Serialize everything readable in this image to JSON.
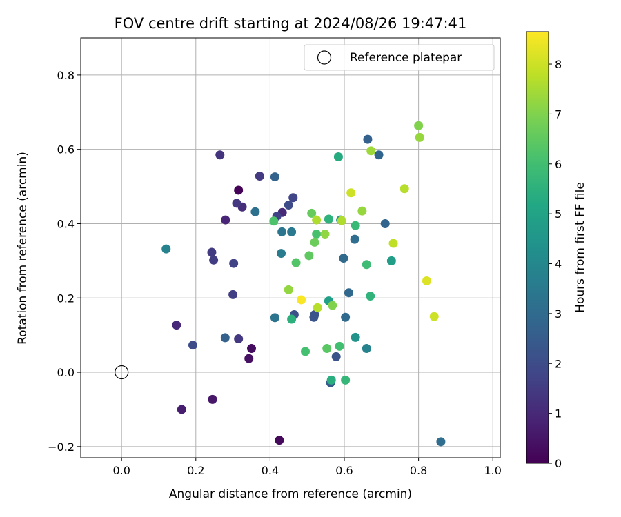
{
  "chart_data": {
    "type": "scatter",
    "title": "FOV centre drift starting at 2024/08/26 19:47:41",
    "xlabel": "Angular distance from reference (arcmin)",
    "ylabel": "Rotation from reference (arcmin)",
    "xlim": [
      -0.11,
      1.02
    ],
    "ylim": [
      -0.23,
      0.9
    ],
    "xticks": [
      "0.0",
      "0.2",
      "0.4",
      "0.6",
      "0.8",
      "1.0"
    ],
    "yticks": [
      "−0.2",
      "0.0",
      "0.2",
      "0.4",
      "0.6",
      "0.8"
    ],
    "grid": true,
    "legend": {
      "placement": "top-right",
      "entries": [
        "Reference platepar"
      ]
    },
    "reference_point": {
      "x": 0.0,
      "y": 0.0,
      "label": "Reference platepar"
    },
    "colorbar": {
      "label": "Hours from first FF file",
      "colormap": "viridis",
      "range": [
        0,
        8.65
      ],
      "ticks": [
        "0",
        "1",
        "2",
        "3",
        "4",
        "5",
        "6",
        "7",
        "8"
      ]
    },
    "points": [
      {
        "x": 0.315,
        "y": 0.49,
        "hours": 0.05
      },
      {
        "x": 0.425,
        "y": -0.183,
        "hours": 0.2
      },
      {
        "x": 0.35,
        "y": 0.064,
        "hours": 0.3
      },
      {
        "x": 0.343,
        "y": 0.037,
        "hours": 0.4
      },
      {
        "x": 0.245,
        "y": -0.073,
        "hours": 0.55
      },
      {
        "x": 0.162,
        "y": -0.1,
        "hours": 0.7
      },
      {
        "x": 0.28,
        "y": 0.41,
        "hours": 0.9
      },
      {
        "x": 0.148,
        "y": 0.127,
        "hours": 0.95
      },
      {
        "x": 0.325,
        "y": 0.445,
        "hours": 1.1
      },
      {
        "x": 0.433,
        "y": 0.43,
        "hours": 1.05
      },
      {
        "x": 0.265,
        "y": 0.585,
        "hours": 1.3
      },
      {
        "x": 0.31,
        "y": 0.455,
        "hours": 1.4
      },
      {
        "x": 0.372,
        "y": 0.528,
        "hours": 1.45
      },
      {
        "x": 0.315,
        "y": 0.09,
        "hours": 1.4
      },
      {
        "x": 0.243,
        "y": 0.323,
        "hours": 1.5
      },
      {
        "x": 0.248,
        "y": 0.302,
        "hours": 1.55
      },
      {
        "x": 0.3,
        "y": 0.209,
        "hours": 1.6
      },
      {
        "x": 0.302,
        "y": 0.293,
        "hours": 1.7
      },
      {
        "x": 0.418,
        "y": 0.42,
        "hours": 1.7
      },
      {
        "x": 0.462,
        "y": 0.47,
        "hours": 1.8
      },
      {
        "x": 0.192,
        "y": 0.073,
        "hours": 2.0
      },
      {
        "x": 0.45,
        "y": 0.45,
        "hours": 2.0
      },
      {
        "x": 0.465,
        "y": 0.155,
        "hours": 2.1
      },
      {
        "x": 0.52,
        "y": 0.155,
        "hours": 2.15
      },
      {
        "x": 0.518,
        "y": 0.148,
        "hours": 2.2
      },
      {
        "x": 0.578,
        "y": 0.042,
        "hours": 2.25
      },
      {
        "x": 0.563,
        "y": -0.028,
        "hours": 2.4
      },
      {
        "x": 0.279,
        "y": 0.093,
        "hours": 2.7
      },
      {
        "x": 0.413,
        "y": 0.526,
        "hours": 2.75
      },
      {
        "x": 0.663,
        "y": 0.627,
        "hours": 2.7
      },
      {
        "x": 0.693,
        "y": 0.585,
        "hours": 2.8
      },
      {
        "x": 0.71,
        "y": 0.4,
        "hours": 2.8
      },
      {
        "x": 0.612,
        "y": 0.214,
        "hours": 2.9
      },
      {
        "x": 0.603,
        "y": 0.148,
        "hours": 3.0
      },
      {
        "x": 0.598,
        "y": 0.307,
        "hours": 3.0
      },
      {
        "x": 0.628,
        "y": 0.358,
        "hours": 3.1
      },
      {
        "x": 0.86,
        "y": -0.187,
        "hours": 3.1
      },
      {
        "x": 0.36,
        "y": 0.432,
        "hours": 3.2
      },
      {
        "x": 0.413,
        "y": 0.147,
        "hours": 3.3
      },
      {
        "x": 0.432,
        "y": 0.378,
        "hours": 3.4
      },
      {
        "x": 0.458,
        "y": 0.378,
        "hours": 3.5
      },
      {
        "x": 0.43,
        "y": 0.32,
        "hours": 3.55
      },
      {
        "x": 0.12,
        "y": 0.332,
        "hours": 3.8
      },
      {
        "x": 0.66,
        "y": 0.064,
        "hours": 3.85
      },
      {
        "x": 0.63,
        "y": 0.094,
        "hours": 4.4
      },
      {
        "x": 0.59,
        "y": 0.41,
        "hours": 4.6
      },
      {
        "x": 0.727,
        "y": 0.3,
        "hours": 4.8
      },
      {
        "x": 0.558,
        "y": 0.192,
        "hours": 4.9
      },
      {
        "x": 0.584,
        "y": 0.58,
        "hours": 5.3
      },
      {
        "x": 0.565,
        "y": -0.021,
        "hours": 5.4
      },
      {
        "x": 0.458,
        "y": 0.143,
        "hours": 5.5
      },
      {
        "x": 0.558,
        "y": 0.412,
        "hours": 5.55
      },
      {
        "x": 0.67,
        "y": 0.205,
        "hours": 5.6
      },
      {
        "x": 0.603,
        "y": -0.021,
        "hours": 5.7
      },
      {
        "x": 0.63,
        "y": 0.395,
        "hours": 5.8
      },
      {
        "x": 0.66,
        "y": 0.29,
        "hours": 5.9
      },
      {
        "x": 0.587,
        "y": 0.07,
        "hours": 6.0
      },
      {
        "x": 0.495,
        "y": 0.056,
        "hours": 6.05
      },
      {
        "x": 0.525,
        "y": 0.372,
        "hours": 6.1
      },
      {
        "x": 0.41,
        "y": 0.407,
        "hours": 6.2
      },
      {
        "x": 0.47,
        "y": 0.295,
        "hours": 6.3
      },
      {
        "x": 0.553,
        "y": 0.064,
        "hours": 6.4
      },
      {
        "x": 0.505,
        "y": 0.314,
        "hours": 6.5
      },
      {
        "x": 0.512,
        "y": 0.428,
        "hours": 6.6
      },
      {
        "x": 0.52,
        "y": 0.35,
        "hours": 6.7
      },
      {
        "x": 0.568,
        "y": 0.18,
        "hours": 7.0
      },
      {
        "x": 0.8,
        "y": 0.664,
        "hours": 7.0
      },
      {
        "x": 0.548,
        "y": 0.372,
        "hours": 7.2
      },
      {
        "x": 0.45,
        "y": 0.222,
        "hours": 7.25
      },
      {
        "x": 0.803,
        "y": 0.632,
        "hours": 7.3
      },
      {
        "x": 0.648,
        "y": 0.434,
        "hours": 7.3
      },
      {
        "x": 0.672,
        "y": 0.596,
        "hours": 7.4
      },
      {
        "x": 0.525,
        "y": 0.41,
        "hours": 7.6
      },
      {
        "x": 0.593,
        "y": 0.408,
        "hours": 7.6
      },
      {
        "x": 0.528,
        "y": 0.174,
        "hours": 7.7
      },
      {
        "x": 0.762,
        "y": 0.494,
        "hours": 7.7
      },
      {
        "x": 0.732,
        "y": 0.347,
        "hours": 7.8
      },
      {
        "x": 0.618,
        "y": 0.483,
        "hours": 8.0
      },
      {
        "x": 0.842,
        "y": 0.15,
        "hours": 8.0
      },
      {
        "x": 0.822,
        "y": 0.246,
        "hours": 8.2
      },
      {
        "x": 0.484,
        "y": 0.195,
        "hours": 8.6
      }
    ]
  }
}
